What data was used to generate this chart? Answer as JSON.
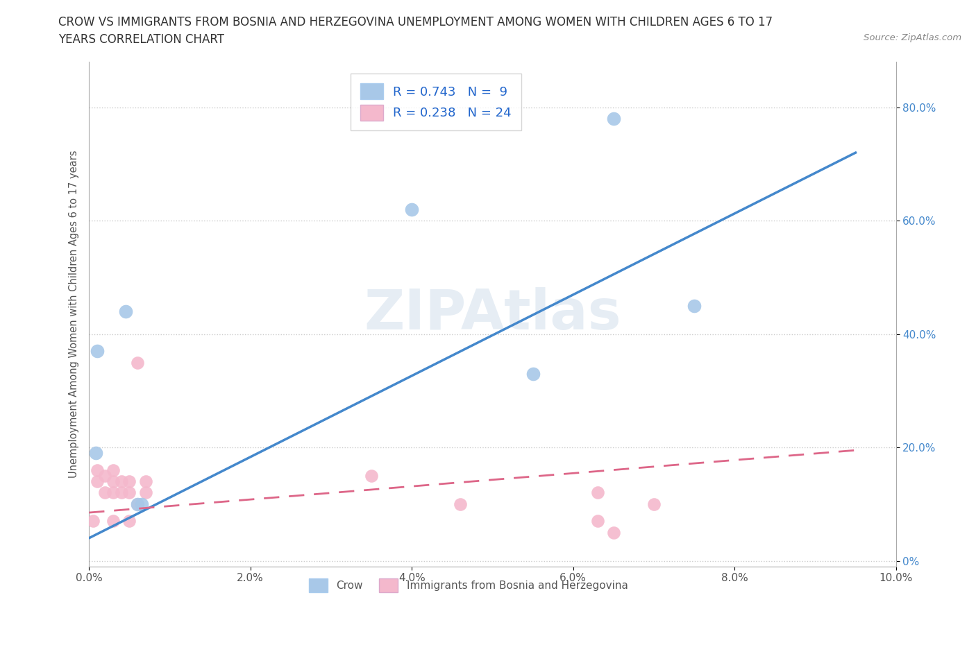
{
  "title_line1": "CROW VS IMMIGRANTS FROM BOSNIA AND HERZEGOVINA UNEMPLOYMENT AMONG WOMEN WITH CHILDREN AGES 6 TO 17",
  "title_line2": "YEARS CORRELATION CHART",
  "source": "Source: ZipAtlas.com",
  "ylabel": "Unemployment Among Women with Children Ages 6 to 17 years",
  "crow_color": "#a8c8e8",
  "crow_color_line": "#4488cc",
  "immigrant_color": "#f4b8cc",
  "immigrant_color_line": "#dd6688",
  "crow_R": 0.743,
  "crow_N": 9,
  "immigrant_R": 0.238,
  "immigrant_N": 24,
  "crow_scatter_x": [
    0.0008,
    0.001,
    0.0045,
    0.006,
    0.0065,
    0.065,
    0.075,
    0.04,
    0.055
  ],
  "crow_scatter_y": [
    0.19,
    0.37,
    0.44,
    0.1,
    0.1,
    0.78,
    0.45,
    0.62,
    0.33
  ],
  "crow_trend_x": [
    0.0,
    0.095
  ],
  "crow_trend_y": [
    0.04,
    0.72
  ],
  "immigrant_scatter_x": [
    0.0005,
    0.001,
    0.001,
    0.002,
    0.002,
    0.003,
    0.003,
    0.003,
    0.003,
    0.004,
    0.004,
    0.005,
    0.005,
    0.005,
    0.006,
    0.006,
    0.007,
    0.007,
    0.035,
    0.046,
    0.063,
    0.063,
    0.065,
    0.07
  ],
  "immigrant_scatter_y": [
    0.07,
    0.14,
    0.16,
    0.12,
    0.15,
    0.12,
    0.14,
    0.16,
    0.07,
    0.12,
    0.14,
    0.12,
    0.14,
    0.07,
    0.1,
    0.35,
    0.12,
    0.14,
    0.15,
    0.1,
    0.12,
    0.07,
    0.05,
    0.1
  ],
  "immigrant_trend_x": [
    0.0,
    0.095
  ],
  "immigrant_trend_y": [
    0.085,
    0.195
  ],
  "xlim": [
    0.0,
    0.1
  ],
  "ylim": [
    -0.01,
    0.88
  ],
  "xticks": [
    0.0,
    0.02,
    0.04,
    0.06,
    0.08,
    0.1
  ],
  "xtick_labels": [
    "0.0%",
    "2.0%",
    "4.0%",
    "6.0%",
    "8.0%",
    "10.0%"
  ],
  "yticks": [
    0.0,
    0.2,
    0.4,
    0.6,
    0.8
  ],
  "ytick_labels": [
    "0%",
    "20.0%",
    "40.0%",
    "60.0%",
    "80.0%"
  ],
  "background_color": "#ffffff",
  "grid_color": "#cccccc",
  "legend_label_crow": "Crow",
  "legend_label_immigrant": "Immigrants from Bosnia and Herzegovina",
  "watermark": "ZIPAtlas"
}
